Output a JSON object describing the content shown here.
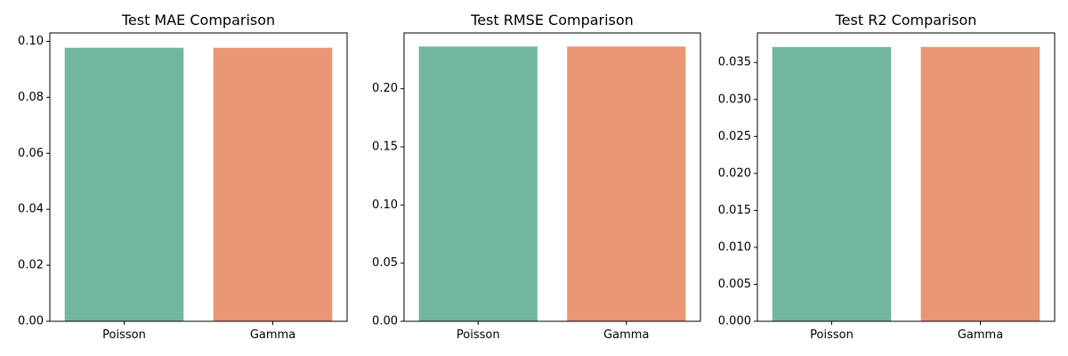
{
  "chart_data": [
    {
      "type": "bar",
      "title": "Test MAE Comparison",
      "categories": [
        "Poisson",
        "Gamma"
      ],
      "values": [
        0.0977,
        0.0977
      ],
      "colors": [
        "#73b6a0",
        "#e89674"
      ],
      "ylim": [
        0,
        0.103
      ],
      "yticks": [
        0.0,
        0.02,
        0.04,
        0.06,
        0.08,
        0.1
      ],
      "ytick_labels": [
        "0.00",
        "0.02",
        "0.04",
        "0.06",
        "0.08",
        "0.10"
      ],
      "xlabel": "",
      "ylabel": "",
      "grid": false
    },
    {
      "type": "bar",
      "title": "Test RMSE Comparison",
      "categories": [
        "Poisson",
        "Gamma"
      ],
      "values": [
        0.2363,
        0.2363
      ],
      "colors": [
        "#73b6a0",
        "#e89674"
      ],
      "ylim": [
        0,
        0.248
      ],
      "yticks": [
        0.0,
        0.05,
        0.1,
        0.15,
        0.2
      ],
      "ytick_labels": [
        "0.00",
        "0.05",
        "0.10",
        "0.15",
        "0.20"
      ],
      "xlabel": "",
      "ylabel": "",
      "grid": false
    },
    {
      "type": "bar",
      "title": "Test R2 Comparison",
      "categories": [
        "Poisson",
        "Gamma"
      ],
      "values": [
        0.0371,
        0.0371
      ],
      "colors": [
        "#73b6a0",
        "#e89674"
      ],
      "ylim": [
        0,
        0.039
      ],
      "yticks": [
        0.0,
        0.005,
        0.01,
        0.015,
        0.02,
        0.025,
        0.03,
        0.035
      ],
      "ytick_labels": [
        "0.000",
        "0.005",
        "0.010",
        "0.015",
        "0.020",
        "0.025",
        "0.030",
        "0.035"
      ],
      "xlabel": "",
      "ylabel": "",
      "grid": false
    }
  ]
}
